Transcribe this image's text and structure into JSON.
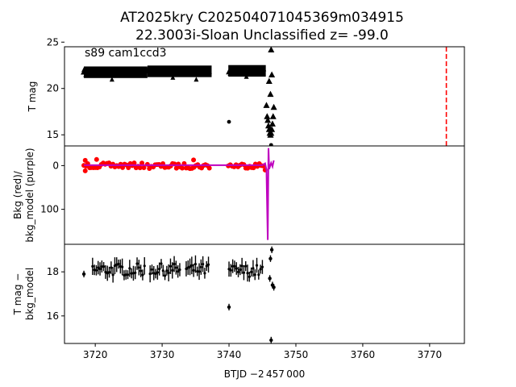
{
  "title": {
    "line1": "AT2025kry  C202504071045369m034915",
    "line2": "22.3003i-Sloan Unclassified z= -99.0"
  },
  "colors": {
    "data": "#000000",
    "background": "#ff0000",
    "model": "#bf00bf",
    "marker_line": "#ff0000"
  },
  "x_axis": {
    "label": "BTJD −2 457 000",
    "range": [
      3715.4,
      3775.2
    ],
    "ticks": [
      "3720",
      "3730",
      "3740",
      "3750",
      "3760",
      "3770"
    ]
  },
  "chart_data": [
    {
      "type": "scatter",
      "panel": "top",
      "annotation": "s89 cam1ccd3",
      "ylabel": "T mag",
      "ylim": [
        24.5,
        13.8
      ],
      "y_inverted": true,
      "yticks": [
        "15",
        "20",
        "25"
      ],
      "x_range": [
        3715.4,
        3775.2
      ],
      "series": [
        {
          "type": "band",
          "segments": [
            {
              "x0": 3718.3,
              "x1": 3727.8,
              "ymid": 21.75,
              "half": 0.45
            },
            {
              "x0": 3727.8,
              "x1": 3737.4,
              "ymid": 21.85,
              "half": 0.45
            },
            {
              "x0": 3739.9,
              "x1": 3745.5,
              "ymid": 21.9,
              "half": 0.45
            }
          ],
          "bumps": [
            {
              "x": 3722.5,
              "y": 21.0
            },
            {
              "x": 3731.6,
              "y": 21.2
            },
            {
              "x": 3735.1,
              "y": 21.0
            },
            {
              "x": 3742.6,
              "y": 21.3
            }
          ]
        },
        {
          "type": "triangles",
          "points": [
            [
              3718.3,
              21.8
            ],
            [
              3745.6,
              18.2
            ],
            [
              3745.7,
              17.0
            ],
            [
              3745.8,
              16.6
            ],
            [
              3745.9,
              16.0
            ],
            [
              3746.0,
              15.6
            ],
            [
              3746.1,
              15.2
            ],
            [
              3746.2,
              15.0
            ],
            [
              3746.3,
              15.2
            ],
            [
              3746.4,
              15.6
            ],
            [
              3746.5,
              16.2
            ],
            [
              3746.6,
              17.0
            ],
            [
              3746.7,
              18.0
            ],
            [
              3746.2,
              19.4
            ],
            [
              3746.0,
              20.8
            ],
            [
              3746.4,
              21.5
            ],
            [
              3746.3,
              24.2
            ]
          ]
        },
        {
          "type": "points",
          "points": [
            [
              3740.0,
              16.4
            ],
            [
              3746.3,
              13.9
            ]
          ]
        },
        {
          "type": "vline",
          "x": 3772.5
        }
      ]
    },
    {
      "type": "scatter",
      "panel": "middle",
      "ylabel": "Bkg (red)/\nbkg_model (purple)",
      "ylim": [
        -45,
        180
      ],
      "yticks": [
        "0",
        "100"
      ],
      "x_range": [
        3715.4,
        3775.2
      ],
      "series": [
        {
          "name": "Bkg (red)",
          "type": "dense",
          "segments": [
            {
              "x0": 3718.3,
              "x1": 3727.8,
              "ymid": 0,
              "half": 6
            },
            {
              "x0": 3727.8,
              "x1": 3737.4,
              "ymid": 1,
              "half": 6
            },
            {
              "x0": 3739.9,
              "x1": 3745.5,
              "ymid": 0,
              "half": 6
            }
          ],
          "extras": [
            [
              3718.5,
              12
            ],
            [
              3718.5,
              -12
            ],
            [
              3720.2,
              -14
            ],
            [
              3734.7,
              -13
            ],
            [
              3745.4,
              10
            ]
          ]
        },
        {
          "name": "bkg_model (purple)",
          "type": "line",
          "points": [
            [
              3718.3,
              -1
            ],
            [
              3727.8,
              -1
            ],
            [
              3737.4,
              -1
            ],
            [
              3739.9,
              -1
            ],
            [
              3745.0,
              -1
            ],
            [
              3745.4,
              -5
            ],
            [
              3745.6,
              10
            ],
            [
              3745.8,
              170
            ],
            [
              3745.9,
              -40
            ],
            [
              3746.0,
              8
            ],
            [
              3746.3,
              -6
            ],
            [
              3746.5,
              2
            ],
            [
              3746.7,
              -12
            ]
          ]
        }
      ]
    },
    {
      "type": "scatter",
      "panel": "bottom",
      "ylabel": "T mag −\nbkg_model",
      "ylim": [
        19.25,
        14.75
      ],
      "y_inverted": true,
      "yticks": [
        "16",
        "18"
      ],
      "x_range": [
        3715.4,
        3775.2
      ],
      "series": [
        {
          "type": "errorbars",
          "segments": [
            {
              "x0": 3719.6,
              "x1": 3727.9,
              "ymid": 18.1
            },
            {
              "x0": 3728.2,
              "x1": 3733.0,
              "ymid": 18.1
            },
            {
              "x0": 3733.6,
              "x1": 3737.4,
              "ymid": 18.1
            },
            {
              "x0": 3740.0,
              "x1": 3745.4,
              "ymid": 18.05
            }
          ],
          "points": [
            [
              3718.3,
              17.9
            ],
            [
              3740.0,
              16.4
            ],
            [
              3746.3,
              14.9
            ],
            [
              3746.5,
              17.4
            ],
            [
              3746.7,
              17.3
            ],
            [
              3746.1,
              17.7
            ],
            [
              3746.2,
              18.6
            ],
            [
              3746.4,
              19.0
            ]
          ]
        }
      ]
    }
  ]
}
